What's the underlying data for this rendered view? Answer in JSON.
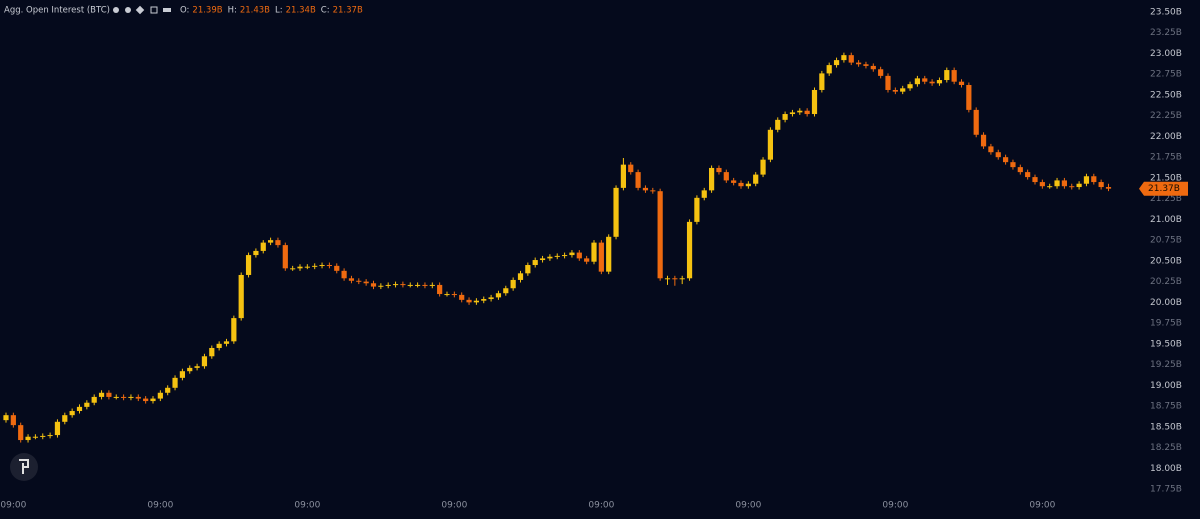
{
  "chart_data": {
    "type": "candlestick",
    "title": "Agg. Open Interest (BTC)",
    "ohlc_readout": [
      {
        "key": "O:",
        "value": "21.39B"
      },
      {
        "key": "H:",
        "value": "21.43B"
      },
      {
        "key": "L:",
        "value": "21.34B"
      },
      {
        "key": "C:",
        "value": "21.37B"
      }
    ],
    "categories": [
      null,
      "09:00",
      null,
      null,
      null,
      null,
      null,
      null,
      null,
      null,
      null,
      null,
      null,
      null,
      null,
      null,
      null,
      null,
      null,
      null,
      null,
      "09:00",
      null,
      null,
      null,
      null,
      null,
      null,
      null,
      null,
      null,
      null,
      null,
      null,
      null,
      null,
      null,
      null,
      null,
      null,
      null,
      "09:00",
      null,
      null,
      null,
      null,
      null,
      null,
      null,
      null,
      null,
      null,
      null,
      null,
      null,
      null,
      null,
      null,
      null,
      null,
      null,
      "09:00",
      null,
      null,
      null,
      null,
      null,
      null,
      null,
      null,
      null,
      null,
      null,
      null,
      null,
      null,
      null,
      null,
      null,
      null,
      null,
      "09:00",
      null,
      null,
      null,
      null,
      null,
      null,
      null,
      null,
      null,
      null,
      null,
      null,
      null,
      null,
      null,
      null,
      null,
      null,
      null,
      "09:00",
      null,
      null,
      null,
      null,
      null,
      null,
      null,
      null,
      null,
      null,
      null,
      null,
      null,
      null,
      null,
      null,
      null,
      null,
      null,
      "09:00",
      null,
      null,
      null,
      null,
      null,
      null,
      null,
      null,
      null,
      null,
      null,
      null,
      null,
      null,
      null,
      null,
      null,
      null,
      null,
      "09:00",
      null,
      null,
      null,
      null,
      null,
      null,
      null,
      null,
      null
    ],
    "open": [
      18.58,
      18.64,
      18.52,
      18.34,
      18.38,
      18.38,
      18.39,
      18.4,
      18.56,
      18.64,
      18.69,
      18.74,
      18.79,
      18.86,
      18.91,
      18.86,
      18.86,
      18.85,
      18.86,
      18.84,
      18.81,
      18.84,
      18.91,
      18.97,
      19.09,
      19.17,
      19.21,
      19.23,
      19.35,
      19.45,
      19.5,
      19.53,
      19.81,
      20.33,
      20.57,
      20.62,
      20.72,
      20.75,
      20.69,
      20.41,
      20.41,
      20.43,
      20.43,
      20.44,
      20.45,
      20.44,
      20.38,
      20.29,
      20.26,
      20.25,
      20.23,
      20.19,
      20.2,
      20.21,
      20.22,
      20.21,
      20.21,
      20.21,
      20.2,
      20.21,
      20.1,
      20.1,
      20.09,
      20.03,
      20.0,
      20.02,
      20.04,
      20.06,
      20.11,
      20.17,
      20.27,
      20.35,
      20.45,
      20.51,
      20.53,
      20.55,
      20.56,
      20.57,
      20.6,
      20.53,
      20.49,
      20.72,
      20.37,
      20.79,
      21.38,
      21.66,
      21.57,
      21.38,
      21.35,
      21.34,
      20.29,
      20.29,
      20.28,
      20.29,
      20.97,
      21.26,
      21.35,
      21.62,
      21.57,
      21.47,
      21.44,
      21.4,
      21.43,
      21.54,
      21.72,
      22.08,
      22.2,
      22.27,
      22.29,
      22.31,
      22.27,
      22.56,
      22.76,
      22.86,
      22.92,
      22.98,
      22.89,
      22.87,
      22.85,
      22.81,
      22.73,
      22.56,
      22.54,
      22.58,
      22.63,
      22.7,
      22.66,
      22.64,
      22.68,
      22.8,
      22.66,
      22.62,
      22.32,
      22.02,
      21.88,
      21.81,
      21.75,
      21.69,
      21.63,
      21.57,
      21.51,
      21.45,
      21.4,
      21.4,
      21.47,
      21.4,
      21.39,
      21.43,
      21.52,
      21.45,
      21.39
    ],
    "high": [
      18.67,
      18.67,
      18.55,
      18.41,
      18.41,
      18.42,
      18.43,
      18.59,
      18.67,
      18.72,
      18.77,
      18.82,
      18.89,
      18.94,
      18.94,
      18.89,
      18.89,
      18.89,
      18.89,
      18.87,
      18.87,
      18.94,
      19.0,
      19.12,
      19.2,
      19.24,
      19.26,
      19.38,
      19.48,
      19.53,
      19.56,
      19.84,
      20.36,
      20.6,
      20.65,
      20.75,
      20.78,
      20.78,
      20.72,
      20.44,
      20.46,
      20.46,
      20.47,
      20.48,
      20.48,
      20.47,
      20.41,
      20.32,
      20.29,
      20.28,
      20.26,
      20.23,
      20.24,
      20.25,
      20.25,
      20.24,
      20.24,
      20.24,
      20.24,
      20.24,
      20.13,
      20.13,
      20.12,
      20.06,
      20.05,
      20.07,
      20.09,
      20.14,
      20.2,
      20.3,
      20.38,
      20.48,
      20.54,
      20.56,
      20.58,
      20.59,
      20.6,
      20.63,
      20.63,
      20.56,
      20.75,
      20.75,
      20.82,
      21.41,
      21.74,
      21.69,
      21.6,
      21.41,
      21.38,
      21.37,
      20.32,
      20.32,
      20.32,
      21.0,
      21.29,
      21.38,
      21.65,
      21.65,
      21.6,
      21.5,
      21.47,
      21.46,
      21.57,
      21.75,
      22.11,
      22.23,
      22.3,
      22.32,
      22.34,
      22.34,
      22.59,
      22.79,
      22.89,
      22.95,
      23.01,
      23.01,
      22.92,
      22.9,
      22.88,
      22.84,
      22.76,
      22.59,
      22.61,
      22.66,
      22.73,
      22.73,
      22.69,
      22.71,
      22.83,
      22.83,
      22.69,
      22.65,
      22.35,
      22.05,
      21.91,
      21.84,
      21.78,
      21.72,
      21.66,
      21.6,
      21.54,
      21.48,
      21.43,
      21.5,
      21.5,
      21.43,
      21.46,
      21.55,
      21.55,
      21.48,
      21.43
    ],
    "low": [
      18.55,
      18.49,
      18.31,
      18.31,
      18.35,
      18.35,
      18.36,
      18.37,
      18.53,
      18.61,
      18.66,
      18.71,
      18.76,
      18.83,
      18.83,
      18.83,
      18.82,
      18.82,
      18.81,
      18.78,
      18.78,
      18.81,
      18.88,
      18.94,
      19.06,
      19.14,
      19.18,
      19.2,
      19.32,
      19.42,
      19.47,
      19.5,
      19.78,
      20.3,
      20.54,
      20.59,
      20.69,
      20.66,
      20.38,
      20.38,
      20.38,
      20.4,
      20.4,
      20.41,
      20.41,
      20.35,
      20.26,
      20.23,
      20.22,
      20.2,
      20.16,
      20.16,
      20.17,
      20.18,
      20.18,
      20.18,
      20.18,
      20.17,
      20.17,
      20.07,
      20.07,
      20.06,
      20.0,
      19.97,
      19.97,
      19.99,
      20.01,
      20.03,
      20.08,
      20.14,
      20.24,
      20.32,
      20.42,
      20.48,
      20.5,
      20.52,
      20.53,
      20.54,
      20.5,
      20.46,
      20.46,
      20.34,
      20.34,
      20.76,
      21.35,
      21.54,
      21.35,
      21.32,
      21.31,
      20.26,
      20.21,
      20.2,
      20.22,
      20.26,
      20.94,
      21.23,
      21.32,
      21.54,
      21.44,
      21.41,
      21.37,
      21.37,
      21.4,
      21.51,
      21.69,
      22.05,
      22.17,
      22.24,
      22.26,
      22.24,
      22.24,
      22.53,
      22.73,
      22.83,
      22.89,
      22.86,
      22.84,
      22.82,
      22.78,
      22.7,
      22.53,
      22.51,
      22.51,
      22.55,
      22.6,
      22.63,
      22.61,
      22.61,
      22.65,
      22.63,
      22.59,
      22.29,
      21.99,
      21.85,
      21.78,
      21.72,
      21.66,
      21.6,
      21.54,
      21.48,
      21.42,
      21.37,
      21.37,
      21.37,
      21.37,
      21.36,
      21.36,
      21.4,
      21.42,
      21.36,
      21.34
    ],
    "close": [
      18.64,
      18.52,
      18.34,
      18.38,
      18.38,
      18.39,
      18.4,
      18.56,
      18.64,
      18.69,
      18.74,
      18.79,
      18.86,
      18.91,
      18.86,
      18.86,
      18.85,
      18.86,
      18.84,
      18.81,
      18.84,
      18.91,
      18.97,
      19.09,
      19.17,
      19.21,
      19.23,
      19.35,
      19.45,
      19.5,
      19.53,
      19.81,
      20.33,
      20.57,
      20.62,
      20.72,
      20.75,
      20.69,
      20.41,
      20.41,
      20.43,
      20.43,
      20.44,
      20.45,
      20.44,
      20.38,
      20.29,
      20.26,
      20.25,
      20.23,
      20.19,
      20.2,
      20.21,
      20.22,
      20.21,
      20.21,
      20.21,
      20.2,
      20.21,
      20.1,
      20.1,
      20.09,
      20.03,
      20.0,
      20.02,
      20.04,
      20.06,
      20.11,
      20.17,
      20.27,
      20.35,
      20.45,
      20.51,
      20.53,
      20.55,
      20.56,
      20.57,
      20.6,
      20.53,
      20.49,
      20.72,
      20.37,
      20.79,
      21.38,
      21.66,
      21.57,
      21.38,
      21.35,
      21.34,
      20.29,
      20.29,
      20.28,
      20.29,
      20.97,
      21.26,
      21.35,
      21.62,
      21.57,
      21.47,
      21.44,
      21.4,
      21.43,
      21.54,
      21.72,
      22.08,
      22.2,
      22.27,
      22.29,
      22.31,
      22.27,
      22.56,
      22.76,
      22.86,
      22.92,
      22.98,
      22.89,
      22.87,
      22.85,
      22.81,
      22.73,
      22.56,
      22.54,
      22.58,
      22.63,
      22.7,
      22.66,
      22.64,
      22.68,
      22.8,
      22.66,
      22.62,
      22.32,
      22.02,
      21.88,
      21.81,
      21.75,
      21.69,
      21.63,
      21.57,
      21.51,
      21.45,
      21.4,
      21.4,
      21.47,
      21.4,
      21.39,
      21.43,
      21.52,
      21.45,
      21.39,
      21.37
    ],
    "up_color": "#f5c211",
    "down_color": "#ef6a10",
    "ylim": [
      17.75,
      23.5
    ],
    "yticks": [
      {
        "value": 17.75,
        "label": "17.75B"
      },
      {
        "value": 18.0,
        "label": "18.00B"
      },
      {
        "value": 18.25,
        "label": "18.25B"
      },
      {
        "value": 18.5,
        "label": "18.50B"
      },
      {
        "value": 18.75,
        "label": "18.75B"
      },
      {
        "value": 19.0,
        "label": "19.00B"
      },
      {
        "value": 19.25,
        "label": "19.25B"
      },
      {
        "value": 19.5,
        "label": "19.50B"
      },
      {
        "value": 19.75,
        "label": "19.75B"
      },
      {
        "value": 20.0,
        "label": "20.00B"
      },
      {
        "value": 20.25,
        "label": "20.25B"
      },
      {
        "value": 20.5,
        "label": "20.50B"
      },
      {
        "value": 20.75,
        "label": "20.75B"
      },
      {
        "value": 21.0,
        "label": "21.00B"
      },
      {
        "value": 21.25,
        "label": "21.25B"
      },
      {
        "value": 21.5,
        "label": "21.50B"
      },
      {
        "value": 21.75,
        "label": "21.75B"
      },
      {
        "value": 22.0,
        "label": "22.00B"
      },
      {
        "value": 22.25,
        "label": "22.25B"
      },
      {
        "value": 22.5,
        "label": "22.50B"
      },
      {
        "value": 22.75,
        "label": "22.75B"
      },
      {
        "value": 23.0,
        "label": "23.00B"
      },
      {
        "value": 23.25,
        "label": "23.25B"
      },
      {
        "value": 23.5,
        "label": "23.50B"
      }
    ],
    "price_tag": {
      "value": 21.37,
      "label": "21.37B"
    },
    "grid": false
  }
}
